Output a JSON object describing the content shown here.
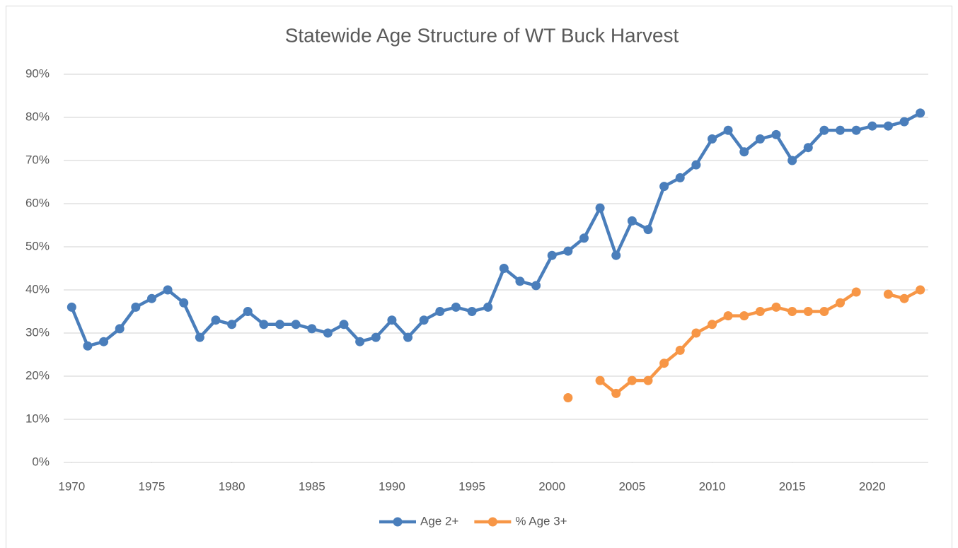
{
  "chart_data": {
    "type": "line",
    "title": "Statewide Age Structure of WT Buck Harvest",
    "x": [
      1970,
      1971,
      1972,
      1973,
      1974,
      1975,
      1976,
      1977,
      1978,
      1979,
      1980,
      1981,
      1982,
      1983,
      1984,
      1985,
      1986,
      1987,
      1988,
      1989,
      1990,
      1991,
      1992,
      1993,
      1994,
      1995,
      1996,
      1997,
      1998,
      1999,
      2000,
      2001,
      2002,
      2003,
      2004,
      2005,
      2006,
      2007,
      2008,
      2009,
      2010,
      2011,
      2012,
      2013,
      2014,
      2015,
      2016,
      2017,
      2018,
      2019,
      2020,
      2021,
      2022,
      2023
    ],
    "series": [
      {
        "name": "Age 2+",
        "color": "#4a7ebb",
        "values": [
          36,
          27,
          28,
          31,
          36,
          38,
          40,
          37,
          29,
          33,
          32,
          35,
          32,
          32,
          32,
          31,
          30,
          32,
          28,
          29,
          33,
          29,
          33,
          35,
          36,
          35,
          36,
          45,
          42,
          41,
          48,
          49,
          52,
          59,
          48,
          56,
          54,
          64,
          66,
          69,
          75,
          77,
          72,
          75,
          76,
          70,
          73,
          77,
          77,
          77,
          78,
          78,
          79,
          81
        ]
      },
      {
        "name": "% Age 3+",
        "color": "#f79646",
        "values": [
          null,
          null,
          null,
          null,
          null,
          null,
          null,
          null,
          null,
          null,
          null,
          null,
          null,
          null,
          null,
          null,
          null,
          null,
          null,
          null,
          null,
          null,
          null,
          null,
          null,
          null,
          null,
          null,
          null,
          null,
          null,
          15,
          null,
          19,
          16,
          19,
          19,
          23,
          26,
          30,
          32,
          34,
          34,
          35,
          36,
          35,
          35,
          35,
          37,
          39.5,
          null,
          39,
          38,
          40
        ]
      }
    ],
    "xlim": [
      1969.5,
      2023.5
    ],
    "xticks": [
      1970,
      1975,
      1980,
      1985,
      1990,
      1995,
      2000,
      2005,
      2010,
      2015,
      2020
    ],
    "ylim": [
      0,
      90
    ],
    "yticks": [
      {
        "value": 0,
        "label": "0%"
      },
      {
        "value": 10,
        "label": "10%"
      },
      {
        "value": 20,
        "label": "20%"
      },
      {
        "value": 30,
        "label": "30%"
      },
      {
        "value": 40,
        "label": "40%"
      },
      {
        "value": 50,
        "label": "50%"
      },
      {
        "value": 60,
        "label": "60%"
      },
      {
        "value": 70,
        "label": "70%"
      },
      {
        "value": 80,
        "label": "80%"
      },
      {
        "value": 90,
        "label": "90%"
      }
    ],
    "grid": true,
    "legend": "bottom"
  }
}
